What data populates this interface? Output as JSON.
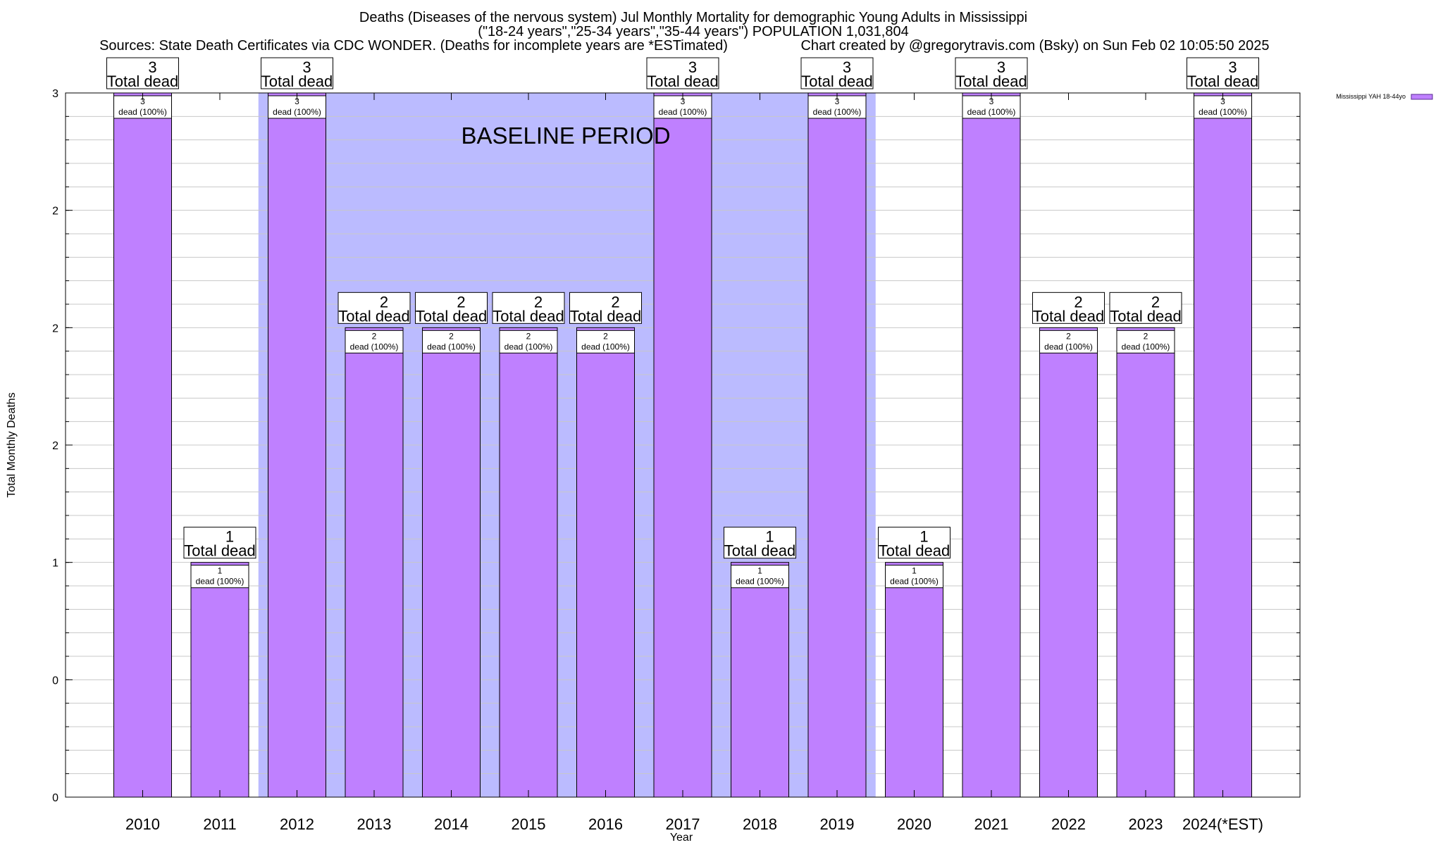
{
  "chart_data": {
    "type": "bar",
    "title_lines": [
      "Deaths (Diseases of the nervous system) Jul Monthly Mortality for demographic Young Adults in Mississippi",
      "(\"18-24 years\",\"25-34 years\",\"35-44 years\") POPULATION 1,031,804"
    ],
    "source_line": "Sources: State Death Certificates via CDC WONDER. (Deaths for incomplete years are *ESTimated)",
    "credit_line": "Chart created by @gregorytravis.com (Bsky) on Sun Feb 02 10:05:50 2025",
    "xlabel": "Year",
    "ylabel": "Total Monthly Deaths",
    "ylim": [
      0,
      3
    ],
    "y_tick_labels": [
      "0",
      "0",
      "1",
      "2",
      "2",
      "2",
      "3"
    ],
    "grid": true,
    "categories": [
      "2010",
      "2011",
      "2012",
      "2013",
      "2014",
      "2015",
      "2016",
      "2017",
      "2018",
      "2019",
      "2020",
      "2021",
      "2022",
      "2023",
      "2024(*EST)"
    ],
    "series": [
      {
        "name": "Mississippi YAH 18-44yo",
        "values": [
          3,
          1,
          3,
          2,
          2,
          2,
          2,
          3,
          1,
          3,
          1,
          3,
          2,
          2,
          3
        ],
        "color": "#bf80ff"
      }
    ],
    "total_label_suffix": "Total dead",
    "inner_label_suffix": "dead (100%)",
    "baseline_period": {
      "label": "BASELINE PERIOD",
      "from": "2012",
      "to": "2019",
      "color": "#bbbbff"
    },
    "legend_position": "top-right"
  }
}
